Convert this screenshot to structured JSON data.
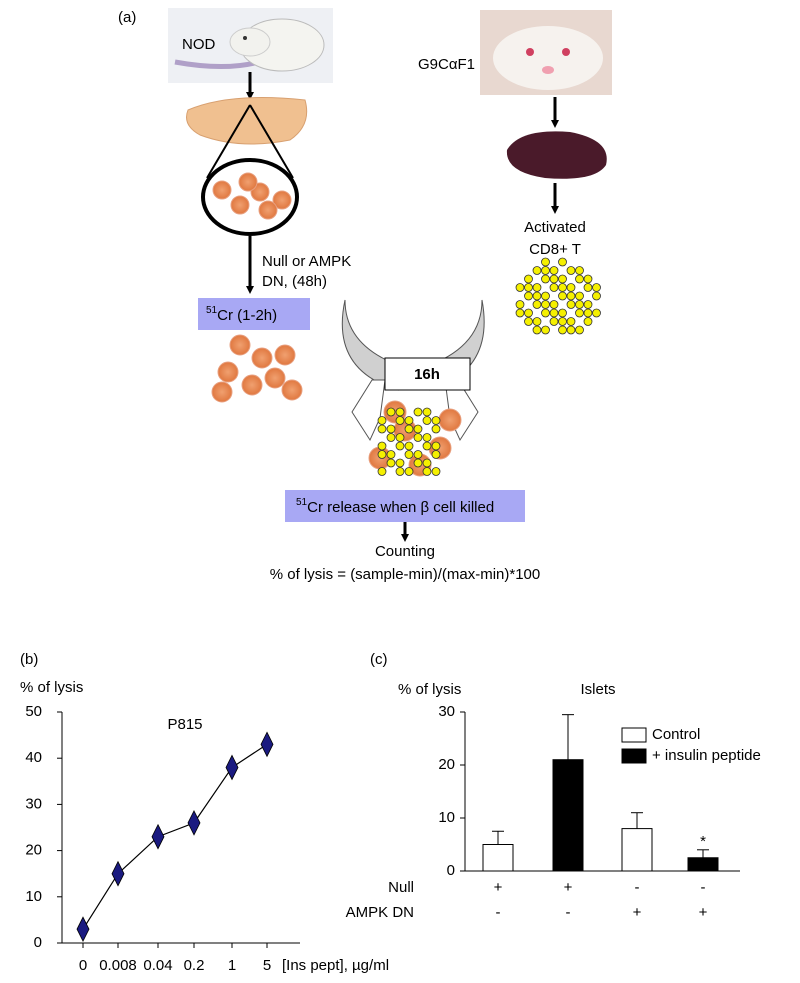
{
  "diagram": {
    "panel_label": "(a)",
    "mouse_left": "NOD",
    "mouse_right": "G9CαF1",
    "treatment_lines": [
      "Null or AMPK",
      "DN, (48h)"
    ],
    "label_box": {
      "sup": "51",
      "text": "Cr (1-2h)"
    },
    "tcell_lines": [
      "Activated",
      "CD8+ T"
    ],
    "incubation": "16h",
    "release_box": {
      "sup": "51",
      "text": "Cr release when β cell killed"
    },
    "counting": "Counting",
    "formula": "% of lysis = (sample-min)/(max-min)*100"
  },
  "chart_data": [
    {
      "type": "line",
      "panel_label": "(b)",
      "title": "P815",
      "ylabel": "% of lysis",
      "xlabel": "[Ins pept], µg/ml",
      "categories": [
        "0",
        "0.008",
        "0.04",
        "0.2",
        "1",
        "5"
      ],
      "values": [
        3,
        15,
        23,
        26,
        38,
        43
      ],
      "color": "#1a1a80",
      "ylim": [
        0,
        50
      ],
      "yticks": [
        0,
        10,
        20,
        30,
        40,
        50
      ],
      "grid": false
    },
    {
      "type": "bar",
      "panel_label": "(c)",
      "title": "Islets",
      "ylabel": "% of lysis",
      "row_labels": [
        "Null",
        "AMPK DN"
      ],
      "rows": [
        [
          "+",
          "+",
          "-",
          "-"
        ],
        [
          "-",
          "-",
          "+",
          "+"
        ]
      ],
      "series": [
        {
          "name": "Control",
          "color": "#ffffff",
          "values": [
            5,
            null,
            8,
            null
          ],
          "errors": [
            2.5,
            null,
            3,
            null
          ]
        },
        {
          "name": "+ insulin peptide",
          "color": "#000000",
          "values": [
            null,
            21,
            null,
            2.5
          ],
          "errors": [
            null,
            8.5,
            null,
            1.5
          ]
        }
      ],
      "annotations": [
        {
          "text": "*",
          "category": 3
        }
      ],
      "ylim": [
        0,
        30
      ],
      "yticks": [
        0,
        10,
        20,
        30
      ],
      "grid": false,
      "legend": "upper right"
    }
  ]
}
